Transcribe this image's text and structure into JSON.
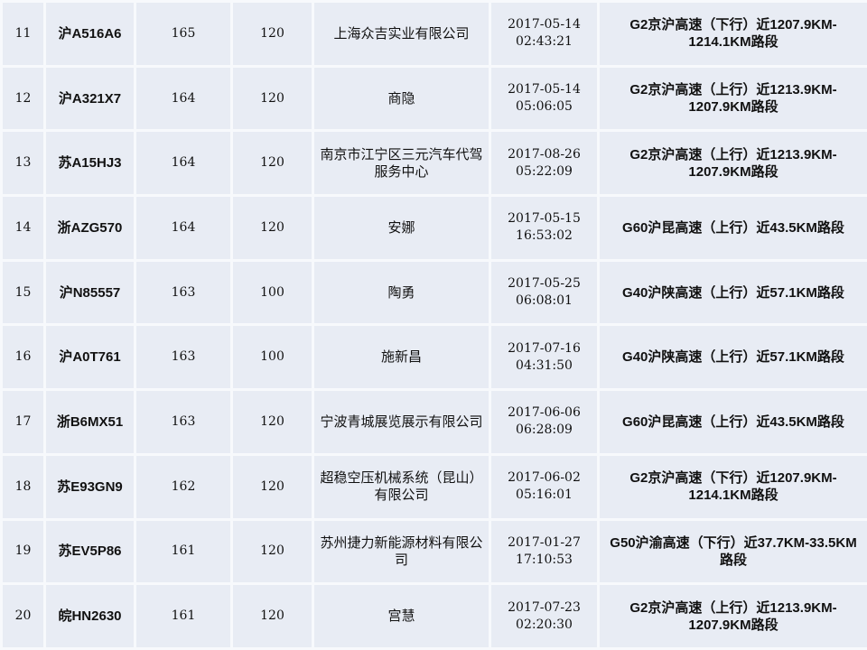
{
  "rows": [
    {
      "index": "11",
      "plate": "沪A516A6",
      "speed": "165",
      "limit": "120",
      "owner": "上海众吉实业有限公司",
      "date": "2017-05-14",
      "time": "02:43:21",
      "location": "G2京沪高速（下行）近1207.9KM-1214.1KM路段"
    },
    {
      "index": "12",
      "plate": "沪A321X7",
      "speed": "164",
      "limit": "120",
      "owner": "商隐",
      "date": "2017-05-14",
      "time": "05:06:05",
      "location": "G2京沪高速（上行）近1213.9KM-1207.9KM路段"
    },
    {
      "index": "13",
      "plate": "苏A15HJ3",
      "speed": "164",
      "limit": "120",
      "owner": "南京市江宁区三元汽车代驾服务中心",
      "date": "2017-08-26",
      "time": "05:22:09",
      "location": "G2京沪高速（上行）近1213.9KM-1207.9KM路段"
    },
    {
      "index": "14",
      "plate": "浙AZG570",
      "speed": "164",
      "limit": "120",
      "owner": "安娜",
      "date": "2017-05-15",
      "time": "16:53:02",
      "location": "G60沪昆高速（上行）近43.5KM路段"
    },
    {
      "index": "15",
      "plate": "沪N85557",
      "speed": "163",
      "limit": "100",
      "owner": "陶勇",
      "date": "2017-05-25",
      "time": "06:08:01",
      "location": "G40沪陕高速（上行）近57.1KM路段"
    },
    {
      "index": "16",
      "plate": "沪A0T761",
      "speed": "163",
      "limit": "100",
      "owner": "施新昌",
      "date": "2017-07-16",
      "time": "04:31:50",
      "location": "G40沪陕高速（上行）近57.1KM路段"
    },
    {
      "index": "17",
      "plate": "浙B6MX51",
      "speed": "163",
      "limit": "120",
      "owner": "宁波青城展览展示有限公司",
      "date": "2017-06-06",
      "time": "06:28:09",
      "location": "G60沪昆高速（上行）近43.5KM路段"
    },
    {
      "index": "18",
      "plate": "苏E93GN9",
      "speed": "162",
      "limit": "120",
      "owner": "超稳空压机械系统（昆山）有限公司",
      "date": "2017-06-02",
      "time": "05:16:01",
      "location": "G2京沪高速（下行）近1207.9KM-1214.1KM路段"
    },
    {
      "index": "19",
      "plate": "苏EV5P86",
      "speed": "161",
      "limit": "120",
      "owner": "苏州捷力新能源材料有限公司",
      "date": "2017-01-27",
      "time": "17:10:53",
      "location": "G50沪渝高速（下行）近37.7KM-33.5KM路段"
    },
    {
      "index": "20",
      "plate": "皖HN2630",
      "speed": "161",
      "limit": "120",
      "owner": "宫慧",
      "date": "2017-07-23",
      "time": "02:20:30",
      "location": "G2京沪高速（上行）近1213.9KM-1207.9KM路段"
    }
  ]
}
